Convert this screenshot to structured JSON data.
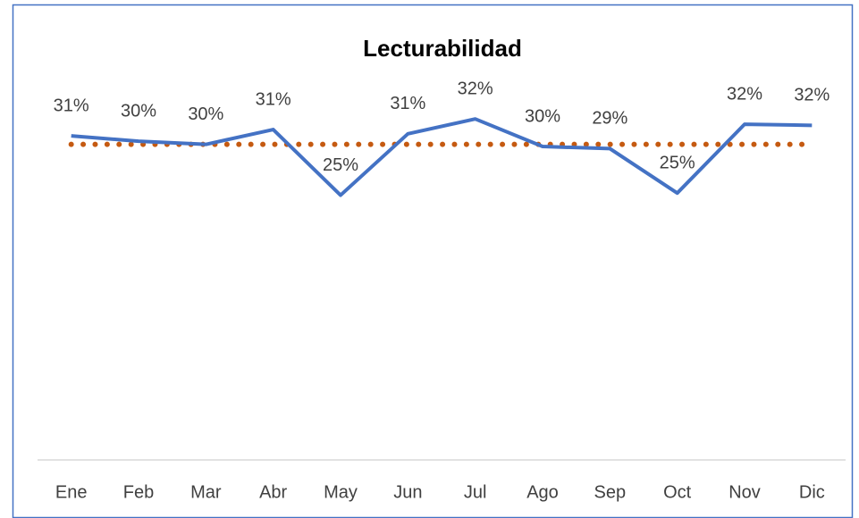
{
  "chart_data": {
    "type": "line",
    "title": "Lecturabilidad",
    "categories": [
      "Ene",
      "Feb",
      "Mar",
      "Abr",
      "May",
      "Jun",
      "Jul",
      "Ago",
      "Sep",
      "Oct",
      "Nov",
      "Dic"
    ],
    "series": [
      {
        "color": "#4472c4",
        "line_style": "solid",
        "values": [
          30.6,
          30.1,
          29.8,
          31.2,
          25.0,
          30.8,
          32.2,
          29.6,
          29.4,
          25.2,
          31.7,
          31.6
        ],
        "value_labels": [
          "31%",
          "30%",
          "30%",
          "31%",
          "25%",
          "31%",
          "32%",
          "30%",
          "29%",
          "25%",
          "32%",
          "32%"
        ]
      },
      {
        "color": "#c55a11",
        "line_style": "dotted",
        "values": [
          29.8,
          29.8,
          29.8,
          29.8,
          29.8,
          29.8,
          29.8,
          29.8,
          29.8,
          29.8,
          29.8,
          29.8
        ]
      }
    ],
    "ylim": [
      0,
      35
    ]
  }
}
